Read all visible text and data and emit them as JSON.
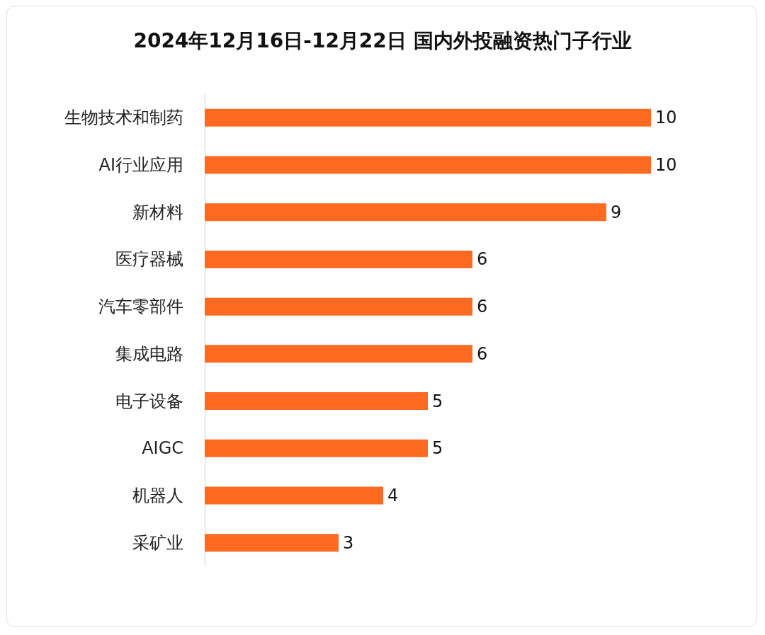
{
  "chart_data": {
    "type": "bar",
    "orientation": "horizontal",
    "title": "2024年12月16日-12月22日 国内外投融资热门子行业",
    "categories": [
      "生物技术和制药",
      "AI行业应用",
      "新材料",
      "医疗器械",
      "汽车零部件",
      "集成电路",
      "电子设备",
      "AIGC",
      "机器人",
      "采矿业"
    ],
    "values": [
      10,
      10,
      9,
      6,
      6,
      6,
      5,
      5,
      4,
      3
    ],
    "color": "#ff6a22",
    "data_labels": true
  }
}
